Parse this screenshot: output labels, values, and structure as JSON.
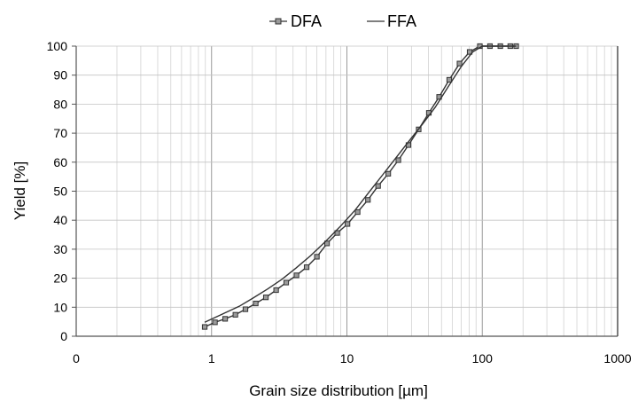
{
  "chart_data": {
    "type": "line",
    "title": "",
    "xlabel": "Grain size distribution [µm]",
    "ylabel": "Yield [%]",
    "x_scale": "log",
    "xlim": [
      0.1,
      1000
    ],
    "ylim": [
      0,
      100
    ],
    "x_ticks": [
      "0",
      "1",
      "10",
      "100",
      "1000"
    ],
    "y_ticks": [
      "0",
      "10",
      "20",
      "30",
      "40",
      "50",
      "60",
      "70",
      "80",
      "90",
      "100"
    ],
    "grid": true,
    "legend": "top",
    "series": [
      {
        "name": "DFA",
        "marker": "square",
        "color": "#333333",
        "x": [
          0.89,
          1.06,
          1.26,
          1.5,
          1.78,
          2.12,
          2.52,
          3.0,
          3.56,
          4.24,
          5.04,
          6.0,
          7.13,
          8.48,
          10.1,
          12.0,
          14.3,
          17.0,
          20.2,
          24.0,
          28.5,
          33.9,
          40.3,
          48.0,
          57.0,
          67.9,
          80.7,
          96.0,
          114,
          136,
          161,
          178
        ],
        "y": [
          3.2,
          4.8,
          6.0,
          7.4,
          9.3,
          11.3,
          13.4,
          15.9,
          18.5,
          21.0,
          23.8,
          27.4,
          32.0,
          35.6,
          38.7,
          42.8,
          47.0,
          51.8,
          56.0,
          60.7,
          65.9,
          71.3,
          77.0,
          82.5,
          88.4,
          94.0,
          98.0,
          100,
          100,
          100,
          100,
          100
        ]
      },
      {
        "name": "FFA",
        "marker": "none",
        "color": "#333333",
        "x": [
          0.89,
          1.2,
          1.6,
          2.0,
          2.6,
          3.3,
          4.2,
          5.4,
          7.0,
          9.0,
          11.5,
          14.5,
          18.5,
          23,
          29,
          36,
          45,
          56,
          70,
          85,
          100,
          178
        ],
        "y": [
          4.8,
          7.6,
          10.3,
          13.0,
          16.3,
          19.6,
          23.5,
          27.8,
          32.8,
          38.0,
          43.5,
          49.5,
          55.8,
          61.5,
          67.5,
          73.0,
          79.0,
          86.0,
          93.0,
          98.0,
          100,
          100
        ]
      }
    ]
  }
}
